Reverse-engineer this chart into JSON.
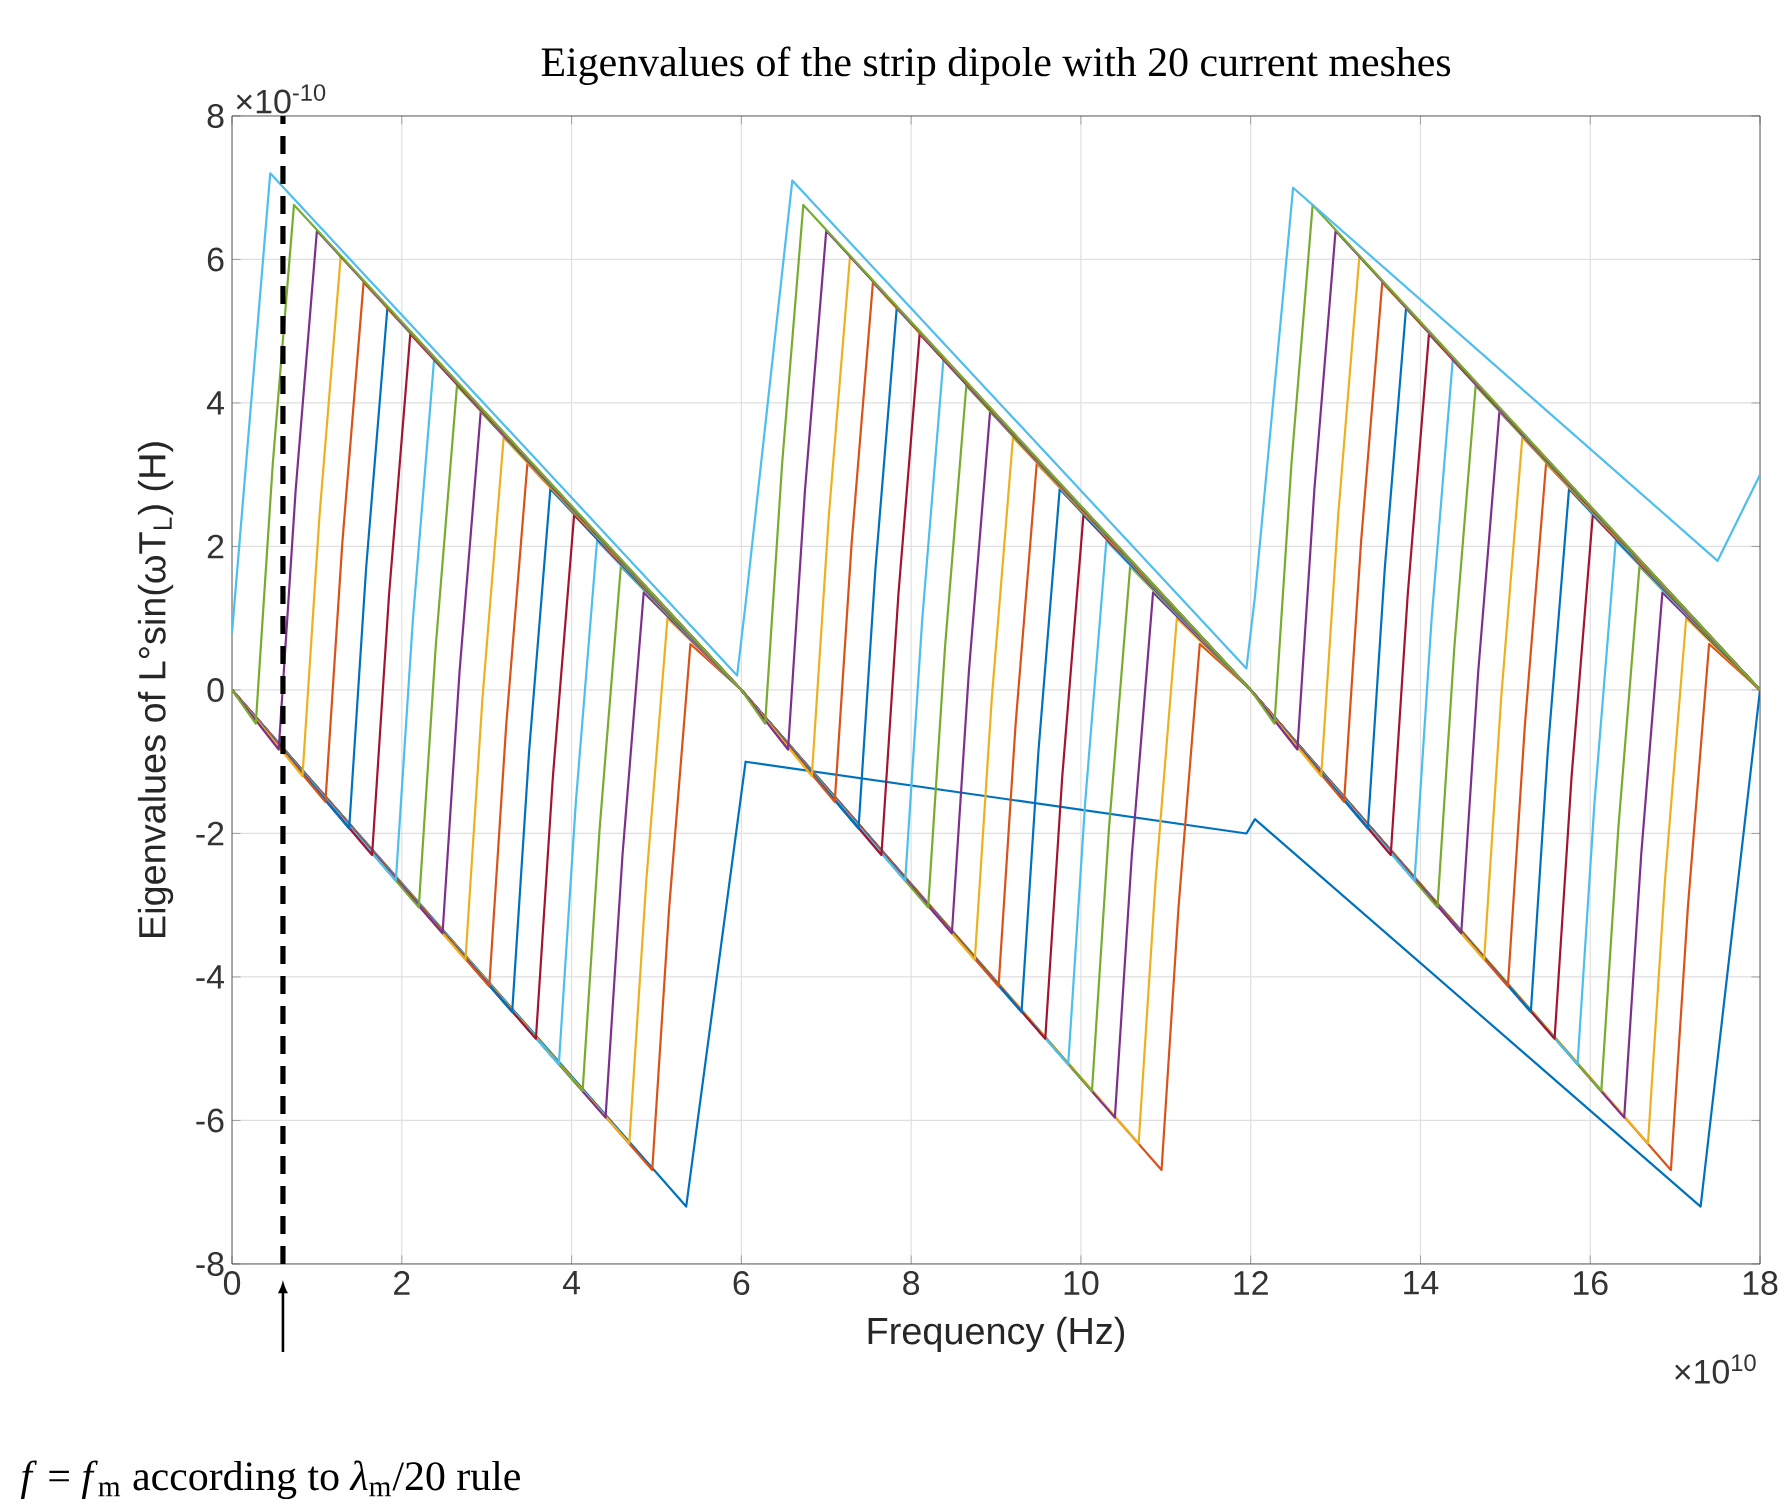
{
  "chart_data": {
    "type": "line",
    "title": "Eigenvalues of the strip dipole with 20 current meshes",
    "xlabel": "Frequency (Hz)",
    "ylabel": "Eigenvalues of    L°sin(ωT$_{L}$)  (H)",
    "annotations": [
      "×10$^{-10}$",
      "×10$^{10}$"
    ],
    "xlim": [
      0,
      18
    ],
    "xticks": [
      0,
      2,
      4,
      6,
      8,
      10,
      12,
      14,
      16,
      18
    ],
    "ylim": [
      -8,
      8
    ],
    "yticks": [
      -8,
      -6,
      -4,
      -2,
      0,
      2,
      4,
      6,
      8
    ],
    "grid": true,
    "ref_lines": [
      {
        "axis": "x",
        "value": 0.6,
        "label": "*f* = *f*$_{m}$ according to *λ*$_{m}$/20 rule",
        "color": "#000000",
        "line_style": "dashed"
      }
    ],
    "series": [
      {
        "color": "#0072bd",
        "x": [
          0,
          5.35,
          6.05,
          11.95,
          12.05,
          17.3,
          18
        ],
        "values": [
          0,
          -7.2,
          -1.0,
          -2.0,
          -1.8,
          -7.2,
          0
        ]
      },
      {
        "color": "#d95319",
        "x": [
          0,
          4.95,
          5.15,
          5.4,
          6,
          10.95,
          11.15,
          11.4,
          12,
          16.95,
          17.15,
          17.4,
          18
        ],
        "values": [
          0,
          -6.69,
          -3.03,
          0.64,
          0,
          -6.69,
          -3.03,
          0.64,
          0,
          -6.69,
          -3.03,
          0.64,
          0
        ]
      },
      {
        "color": "#edb120",
        "x": [
          0,
          4.68,
          4.88,
          5.13,
          6,
          10.68,
          10.88,
          11.13,
          12,
          16.68,
          16.88,
          17.13,
          18
        ],
        "values": [
          0,
          -6.32,
          -2.66,
          1.0,
          0,
          -6.32,
          -2.66,
          1.0,
          0,
          -6.32,
          -2.66,
          1.0,
          0
        ]
      },
      {
        "color": "#7e2f8e",
        "x": [
          0,
          4.4,
          4.6,
          4.85,
          6,
          10.4,
          10.6,
          10.85,
          12,
          16.4,
          16.6,
          16.85,
          18
        ],
        "values": [
          0,
          -5.96,
          -2.3,
          1.36,
          0,
          -5.96,
          -2.3,
          1.36,
          0,
          -5.96,
          -2.3,
          1.36,
          0
        ]
      },
      {
        "color": "#77ac30",
        "x": [
          0,
          4.13,
          4.33,
          4.58,
          6,
          10.13,
          10.33,
          10.58,
          12,
          16.13,
          16.33,
          16.58,
          18
        ],
        "values": [
          0,
          -5.59,
          -1.94,
          1.72,
          0,
          -5.59,
          -1.94,
          1.72,
          0,
          -5.59,
          -1.94,
          1.72,
          0
        ]
      },
      {
        "color": "#4dbeee",
        "x": [
          0,
          3.85,
          4.05,
          4.3,
          6,
          9.85,
          10.05,
          10.3,
          12,
          15.85,
          16.05,
          16.3,
          18
        ],
        "values": [
          0,
          -5.22,
          -1.57,
          2.08,
          0,
          -5.22,
          -1.57,
          2.08,
          0,
          -5.22,
          -1.57,
          2.08,
          0
        ]
      },
      {
        "color": "#a2142f",
        "x": [
          0,
          3.58,
          3.78,
          4.03,
          6,
          9.58,
          9.78,
          10.03,
          12,
          15.58,
          15.78,
          16.03,
          18
        ],
        "values": [
          0,
          -4.86,
          -1.21,
          2.44,
          0,
          -4.86,
          -1.21,
          2.44,
          0,
          -4.86,
          -1.21,
          2.44,
          0
        ]
      },
      {
        "color": "#0072bd",
        "x": [
          0,
          3.3,
          3.5,
          3.75,
          6,
          9.3,
          9.5,
          9.75,
          12,
          15.3,
          15.5,
          15.75,
          18
        ],
        "values": [
          0,
          -4.49,
          -0.85,
          2.8,
          0,
          -4.49,
          -0.85,
          2.8,
          0,
          -4.49,
          -0.85,
          2.8,
          0
        ]
      },
      {
        "color": "#d95319",
        "x": [
          0,
          3.03,
          3.23,
          3.48,
          6,
          9.03,
          9.23,
          9.48,
          12,
          15.03,
          15.23,
          15.48,
          18
        ],
        "values": [
          0,
          -4.13,
          -0.49,
          3.16,
          0,
          -4.13,
          -0.49,
          3.16,
          0,
          -4.13,
          -0.49,
          3.16,
          0
        ]
      },
      {
        "color": "#edb120",
        "x": [
          0,
          2.75,
          2.95,
          3.2,
          6,
          8.75,
          8.95,
          9.2,
          12,
          14.75,
          14.95,
          15.2,
          18
        ],
        "values": [
          0,
          -3.76,
          -0.12,
          3.52,
          0,
          -3.76,
          -0.12,
          3.52,
          0,
          -3.76,
          -0.12,
          3.52,
          0
        ]
      },
      {
        "color": "#7e2f8e",
        "x": [
          0,
          2.48,
          2.68,
          2.93,
          6,
          8.48,
          8.68,
          8.93,
          12,
          14.48,
          14.68,
          14.93,
          18
        ],
        "values": [
          0,
          -3.39,
          0.25,
          3.88,
          0,
          -3.39,
          0.25,
          3.88,
          0,
          -3.39,
          0.25,
          3.88,
          0
        ]
      },
      {
        "color": "#77ac30",
        "x": [
          0,
          2.2,
          2.4,
          2.65,
          6,
          8.2,
          8.4,
          8.65,
          12,
          14.2,
          14.4,
          14.65,
          18
        ],
        "values": [
          0,
          -3.03,
          0.61,
          4.24,
          0,
          -3.03,
          0.61,
          4.24,
          0,
          -3.03,
          0.61,
          4.24,
          0
        ]
      },
      {
        "color": "#4dbeee",
        "x": [
          0,
          1.93,
          2.13,
          2.38,
          6,
          7.93,
          8.13,
          8.38,
          12,
          13.93,
          14.13,
          14.38,
          18
        ],
        "values": [
          0,
          -2.66,
          0.97,
          4.6,
          0,
          -2.66,
          0.97,
          4.6,
          0,
          -2.66,
          0.97,
          4.6,
          0
        ]
      },
      {
        "color": "#a2142f",
        "x": [
          0,
          1.65,
          1.85,
          2.1,
          6,
          7.65,
          7.85,
          8.1,
          12,
          13.65,
          13.85,
          14.1,
          18
        ],
        "values": [
          0,
          -2.3,
          1.33,
          4.96,
          0,
          -2.3,
          1.33,
          4.96,
          0,
          -2.3,
          1.33,
          4.96,
          0
        ]
      },
      {
        "color": "#0072bd",
        "x": [
          0,
          1.38,
          1.58,
          1.83,
          6,
          7.38,
          7.58,
          7.83,
          12,
          13.38,
          13.58,
          13.83,
          18
        ],
        "values": [
          0,
          -1.93,
          1.7,
          5.32,
          0,
          -1.93,
          1.7,
          5.32,
          0,
          -1.93,
          1.7,
          5.32,
          0
        ]
      },
      {
        "color": "#d95319",
        "x": [
          0,
          1.1,
          1.3,
          1.55,
          6,
          7.1,
          7.3,
          7.55,
          12,
          13.1,
          13.3,
          13.55,
          18
        ],
        "values": [
          0,
          -1.56,
          2.06,
          5.68,
          0,
          -1.56,
          2.06,
          5.68,
          0,
          -1.56,
          2.06,
          5.68,
          0
        ]
      },
      {
        "color": "#edb120",
        "x": [
          0,
          0.83,
          1.03,
          1.28,
          6,
          6.83,
          7.03,
          7.28,
          12,
          12.83,
          13.03,
          13.28,
          18
        ],
        "values": [
          0,
          -1.2,
          2.42,
          6.04,
          0,
          -1.2,
          2.42,
          6.04,
          0,
          -1.2,
          2.42,
          6.04,
          0
        ]
      },
      {
        "color": "#7e2f8e",
        "x": [
          0,
          0.55,
          0.75,
          1.0,
          6,
          6.55,
          6.75,
          7.0,
          12,
          12.55,
          12.75,
          13.0,
          18
        ],
        "values": [
          0,
          -0.83,
          2.79,
          6.4,
          0,
          -0.83,
          2.79,
          6.4,
          0,
          -0.83,
          2.79,
          6.4,
          0
        ]
      },
      {
        "color": "#77ac30",
        "x": [
          0,
          0.28,
          0.48,
          0.73,
          6,
          6.28,
          6.48,
          6.73,
          12,
          12.28,
          12.48,
          12.73,
          18
        ],
        "values": [
          0,
          -0.47,
          3.15,
          6.76,
          0,
          -0.47,
          3.15,
          6.76,
          0,
          -0.47,
          3.15,
          6.76,
          0
        ]
      },
      {
        "color": "#4dbeee",
        "x": [
          0,
          0.45,
          5.95,
          6.05,
          6.6,
          11.95,
          12.05,
          12.5,
          17.5,
          18
        ],
        "values": [
          0.8,
          7.2,
          0.2,
          1.2,
          7.1,
          0.3,
          1.3,
          7.0,
          1.8,
          3.0
        ]
      }
    ]
  }
}
